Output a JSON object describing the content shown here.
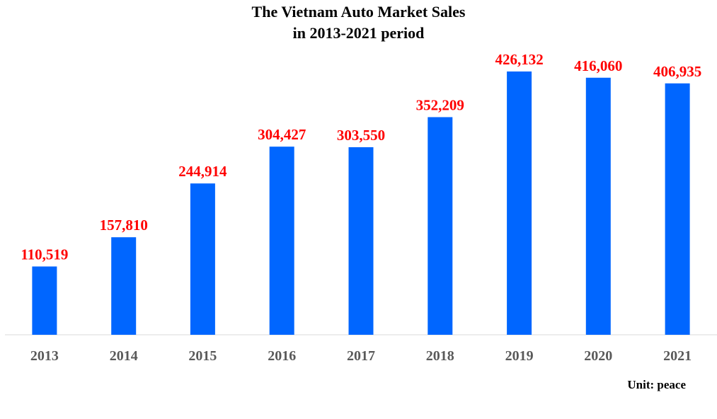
{
  "chart_data": {
    "type": "bar",
    "title_lines": [
      "The Vietnam Auto Market Sales",
      "in 2013-2021 period"
    ],
    "unit_label": "Unit: peace",
    "categories": [
      "2013",
      "2014",
      "2015",
      "2016",
      "2017",
      "2018",
      "2019",
      "2020",
      "2021"
    ],
    "values": [
      110519,
      157810,
      244914,
      304427,
      303550,
      352209,
      426132,
      416060,
      406935
    ],
    "value_labels": [
      "110,519",
      "157,810",
      "244,914",
      "304,427",
      "303,550",
      "352,209",
      "426,132",
      "416,060",
      "406,935"
    ],
    "ylim": [
      0,
      426132
    ],
    "grid": false,
    "legend": "none",
    "bar_color": "#0066ff",
    "value_label_color": "#ff0000",
    "tick_label_color": "#595959",
    "axis_color": "#d9d9d9"
  }
}
